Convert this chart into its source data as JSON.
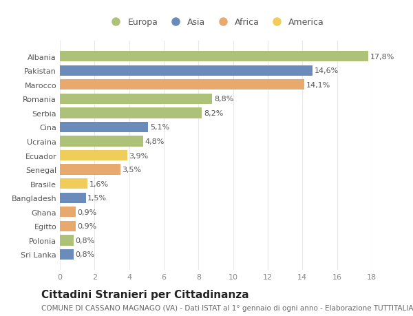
{
  "countries": [
    "Albania",
    "Pakistan",
    "Marocco",
    "Romania",
    "Serbia",
    "Cina",
    "Ucraina",
    "Ecuador",
    "Senegal",
    "Brasile",
    "Bangladesh",
    "Ghana",
    "Egitto",
    "Polonia",
    "Sri Lanka"
  ],
  "values": [
    17.8,
    14.6,
    14.1,
    8.8,
    8.2,
    5.1,
    4.8,
    3.9,
    3.5,
    1.6,
    1.5,
    0.9,
    0.9,
    0.8,
    0.8
  ],
  "labels": [
    "17,8%",
    "14,6%",
    "14,1%",
    "8,8%",
    "8,2%",
    "5,1%",
    "4,8%",
    "3,9%",
    "3,5%",
    "1,6%",
    "1,5%",
    "0,9%",
    "0,9%",
    "0,8%",
    "0,8%"
  ],
  "continents": [
    "Europa",
    "Asia",
    "Africa",
    "Europa",
    "Europa",
    "Asia",
    "Europa",
    "America",
    "Africa",
    "America",
    "Asia",
    "Africa",
    "Africa",
    "Europa",
    "Asia"
  ],
  "colors": {
    "Europa": "#adc178",
    "Asia": "#6b8cba",
    "Africa": "#e8a96e",
    "America": "#f0cc5a"
  },
  "title": "Cittadini Stranieri per Cittadinanza",
  "subtitle": "COMUNE DI CASSANO MAGNAGO (VA) - Dati ISTAT al 1° gennaio di ogni anno - Elaborazione TUTTITALIA.IT",
  "xlim": [
    0,
    18
  ],
  "xticks": [
    0,
    2,
    4,
    6,
    8,
    10,
    12,
    14,
    16,
    18
  ],
  "background_color": "#ffffff",
  "grid_color": "#e8e8e8",
  "bar_height": 0.75,
  "title_fontsize": 11,
  "subtitle_fontsize": 7.5,
  "label_fontsize": 8,
  "tick_fontsize": 8,
  "legend_fontsize": 9
}
